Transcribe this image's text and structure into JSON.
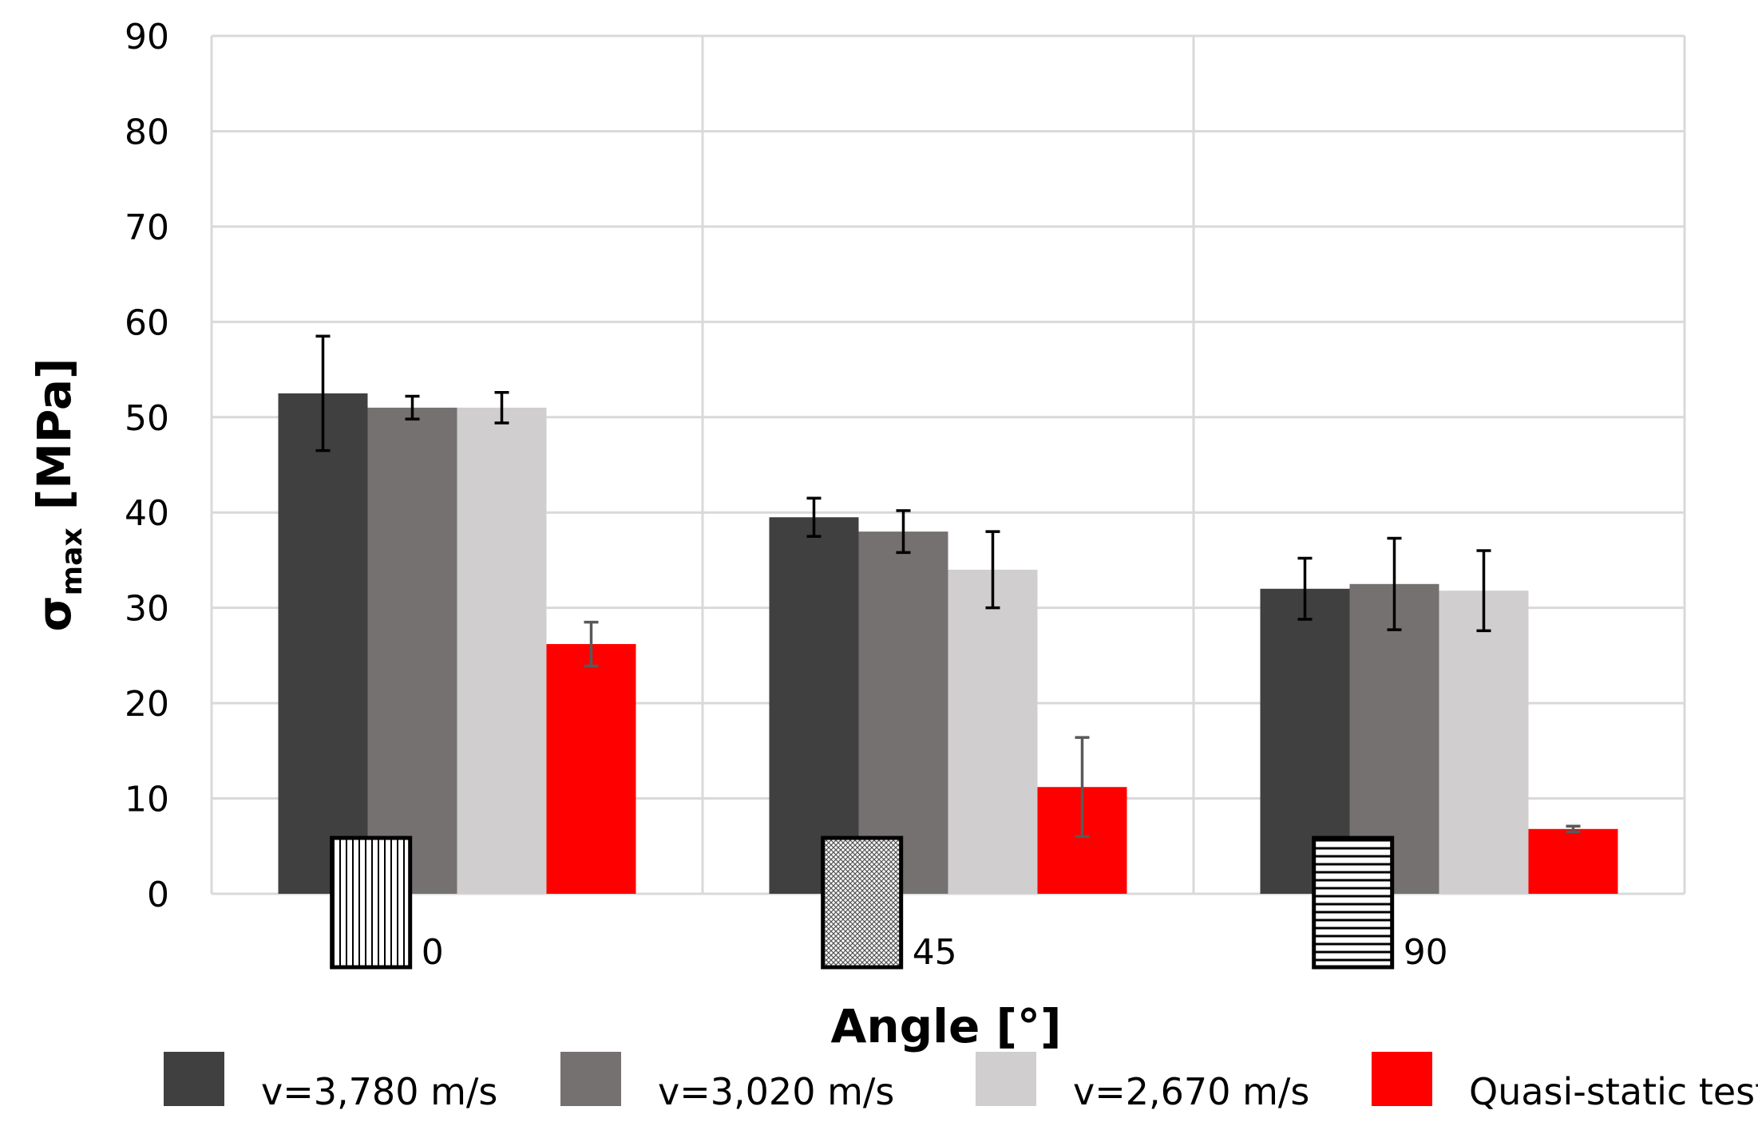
{
  "chart_data": {
    "type": "bar",
    "title": "",
    "xlabel": "Angle [°]",
    "ylabel_main": "σ",
    "ylabel_sub": "max",
    "ylabel_unit": "[MPa]",
    "ylim": [
      0,
      90
    ],
    "yticks": [
      0,
      10,
      20,
      30,
      40,
      50,
      60,
      70,
      80,
      90
    ],
    "grid": true,
    "categories": [
      "0",
      "45",
      "90"
    ],
    "category_icons": [
      "vertical-lines-pattern",
      "crosshatch-pattern",
      "horizontal-lines-pattern"
    ],
    "legend_position": "bottom",
    "series": [
      {
        "name": "v=3,780 m/s",
        "color": "#404040",
        "error_color": "#000000",
        "values": [
          52.5,
          39.5,
          32.0
        ],
        "errors": [
          6.0,
          2.0,
          3.2
        ]
      },
      {
        "name": "v=3,020 m/s",
        "color": "#767171",
        "error_color": "#000000",
        "values": [
          51.0,
          38.0,
          32.5
        ],
        "errors": [
          1.2,
          2.2,
          4.8
        ]
      },
      {
        "name": "v=2,670 m/s",
        "color": "#d0cece",
        "error_color": "#000000",
        "values": [
          51.0,
          34.0,
          31.8
        ],
        "errors": [
          1.6,
          4.0,
          4.2
        ]
      },
      {
        "name": "Quasi-static test",
        "color": "#ff0000",
        "error_color": "#595959",
        "values": [
          26.2,
          11.2,
          6.8
        ],
        "errors": [
          2.3,
          5.2,
          0.3
        ]
      }
    ]
  }
}
